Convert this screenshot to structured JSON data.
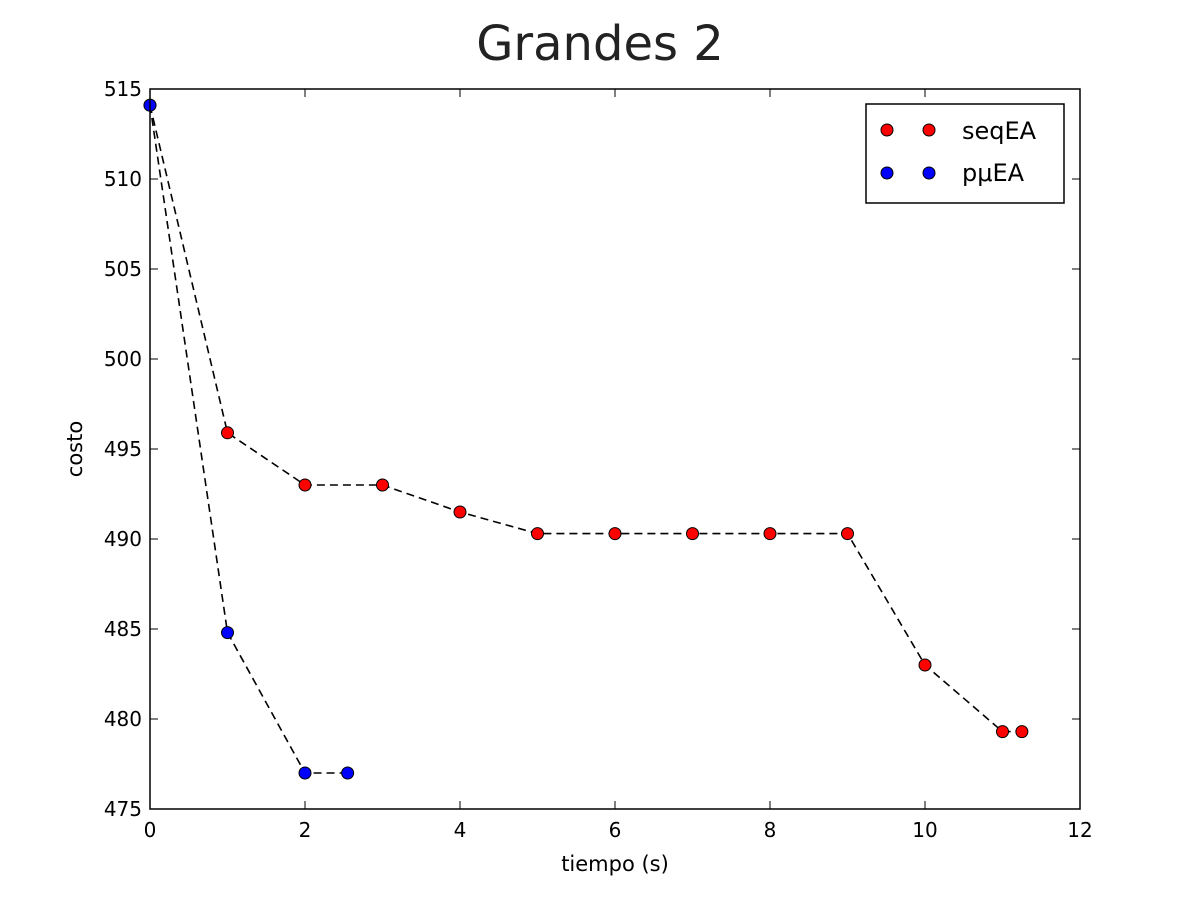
{
  "chart_data": {
    "type": "line",
    "title": "Grandes 2",
    "xlabel": "tiempo (s)",
    "ylabel": "costo",
    "xlim": [
      0,
      12
    ],
    "ylim": [
      475,
      515
    ],
    "xticks": [
      0,
      2,
      4,
      6,
      8,
      10,
      12
    ],
    "yticks": [
      475,
      480,
      485,
      490,
      495,
      500,
      505,
      510,
      515
    ],
    "grid": false,
    "legend_position": "top-right",
    "line_style": "dashed",
    "line_color": "#000000",
    "series": [
      {
        "name": "seqEA",
        "color": "#ff0000",
        "x": [
          0,
          1,
          2,
          3,
          4,
          5,
          6,
          7,
          8,
          9,
          10,
          11,
          11.25
        ],
        "y": [
          514.1,
          495.9,
          493.0,
          493.0,
          491.5,
          490.3,
          490.3,
          490.3,
          490.3,
          490.3,
          483.0,
          479.3,
          479.3
        ]
      },
      {
        "name": "pμEA",
        "color": "#0000ff",
        "x": [
          0,
          1,
          2,
          2.55
        ],
        "y": [
          514.1,
          484.8,
          477.0,
          477.0
        ]
      }
    ]
  }
}
